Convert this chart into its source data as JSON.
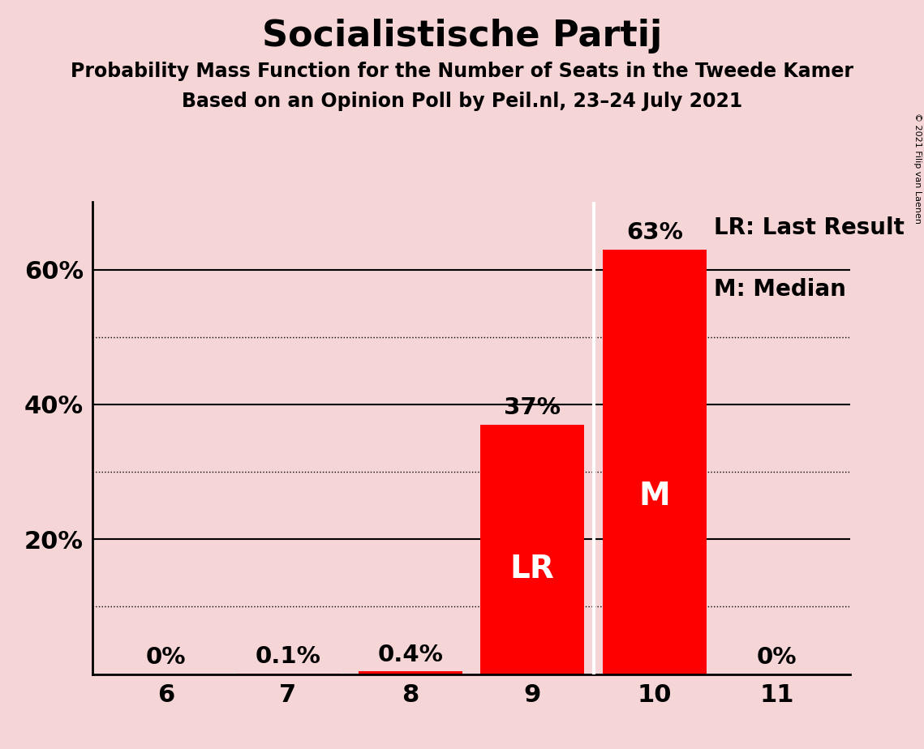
{
  "title": "Socialistische Partij",
  "subtitle1": "Probability Mass Function for the Number of Seats in the Tweede Kamer",
  "subtitle2": "Based on an Opinion Poll by Peil.nl, 23–24 July 2021",
  "copyright": "© 2021 Filip van Laenen",
  "categories": [
    6,
    7,
    8,
    9,
    10,
    11
  ],
  "values": [
    0.0,
    0.001,
    0.004,
    0.37,
    0.63,
    0.0
  ],
  "bar_color": "#ff0000",
  "label_texts": [
    "0%",
    "0.1%",
    "0.4%",
    "37%",
    "63%",
    "0%"
  ],
  "lr_bar": 9,
  "median_bar": 10,
  "background_color": "#f5d5d5",
  "bar_label_color_outside": "#000000",
  "bar_label_color_inside": "#ffffff",
  "legend_lr": "LR: Last Result",
  "legend_m": "M: Median",
  "ytick_positions": [
    0.2,
    0.4,
    0.6
  ],
  "ytick_labels": [
    "20%",
    "40%",
    "60%"
  ],
  "ylim": [
    0,
    0.7
  ],
  "title_fontsize": 32,
  "subtitle_fontsize": 17,
  "axis_tick_fontsize": 22,
  "bar_label_fontsize": 21,
  "legend_fontsize": 20,
  "inside_label_fontsize": 28,
  "solid_gridline_y": [
    0.2,
    0.4,
    0.6
  ],
  "dotted_gridline_y": [
    0.1,
    0.3,
    0.5
  ]
}
